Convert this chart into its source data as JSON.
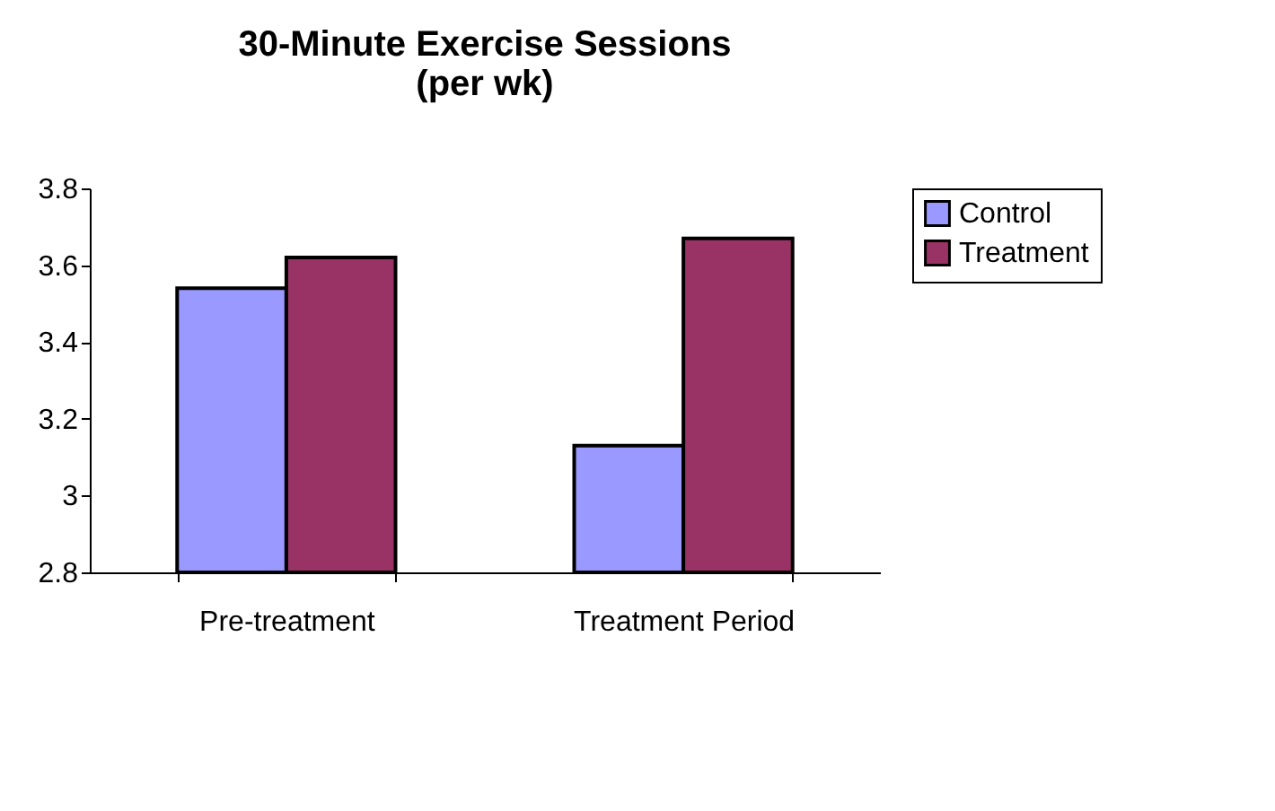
{
  "chart_data": {
    "type": "bar",
    "title": [
      "30-Minute Exercise Sessions",
      "(per wk)"
    ],
    "categories": [
      "Pre-treatment",
      "Treatment Period"
    ],
    "series": [
      {
        "name": "Control",
        "color": "#9999ff",
        "values": [
          3.54,
          3.13
        ]
      },
      {
        "name": "Treatment",
        "color": "#993366",
        "values": [
          3.62,
          3.67
        ]
      }
    ],
    "ylim": [
      2.8,
      3.8
    ],
    "yticks": [
      2.8,
      3,
      3.2,
      3.4,
      3.6,
      3.8
    ],
    "grid": false,
    "legend": "right"
  }
}
